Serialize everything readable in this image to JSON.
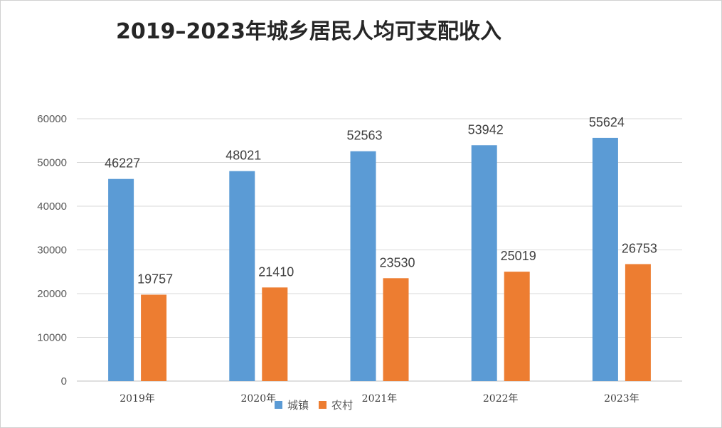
{
  "chart_data": {
    "type": "bar",
    "title": "2019–2023年城乡居民人均可支配收入",
    "categories": [
      "2019年",
      "2020年",
      "2021年",
      "2022年",
      "2023年"
    ],
    "series": [
      {
        "name": "城镇",
        "color": "#5B9BD5",
        "values": [
          46227,
          48021,
          52563,
          53942,
          55624
        ]
      },
      {
        "name": "农村",
        "color": "#ED7D31",
        "values": [
          19757,
          21410,
          23530,
          25019,
          26753
        ]
      }
    ],
    "ylim": [
      0,
      60000
    ],
    "yticks": [
      0,
      10000,
      20000,
      30000,
      40000,
      50000,
      60000
    ],
    "grid": true,
    "legend": "bottom"
  }
}
